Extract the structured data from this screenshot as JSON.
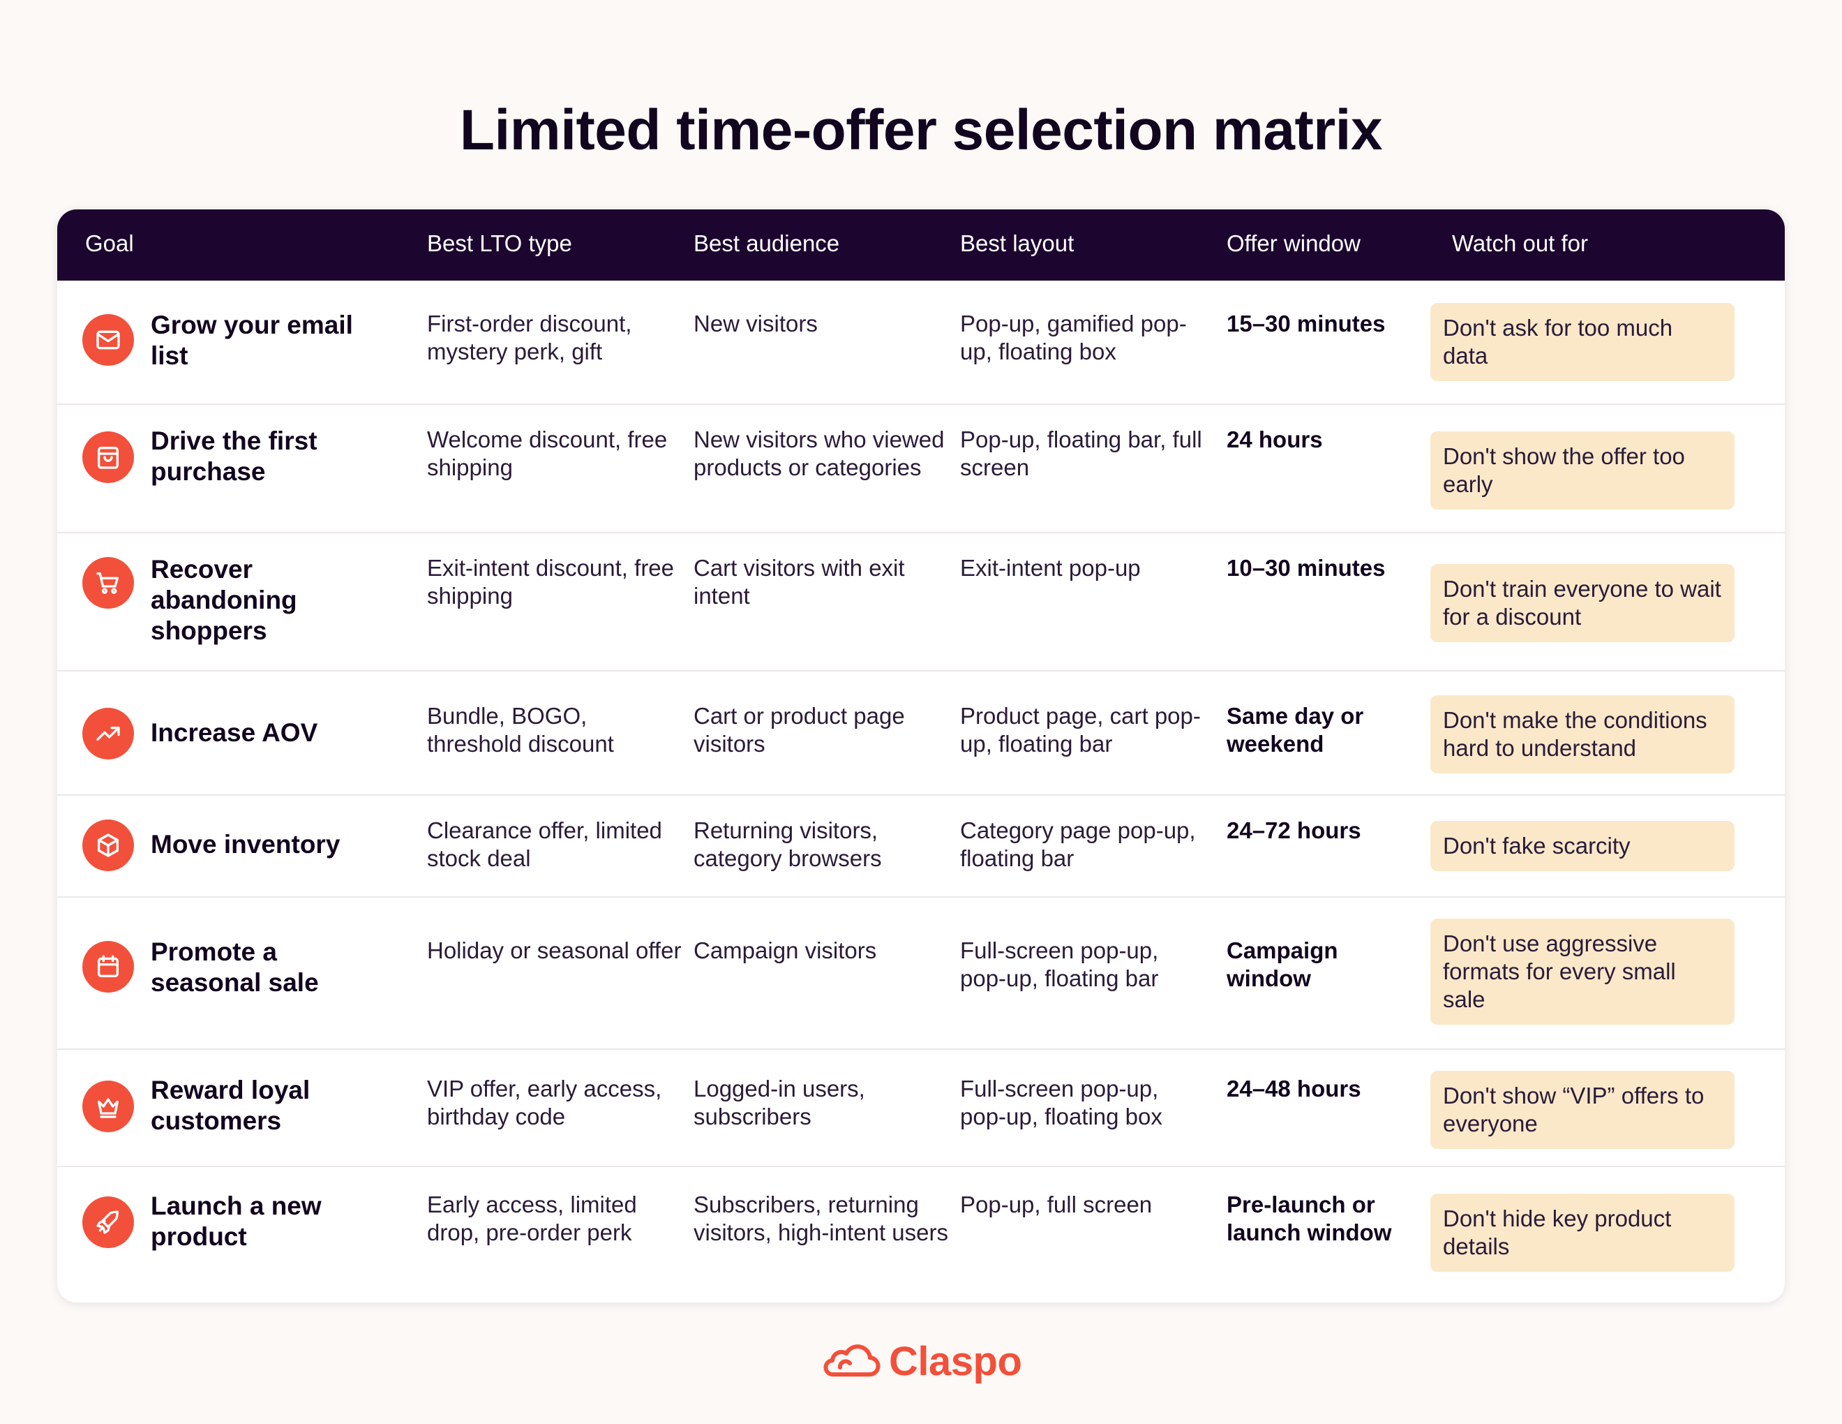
{
  "title": "Limited time-offer selection matrix",
  "colors": {
    "header_bg": "#1c062f",
    "accent": "#f2503a",
    "watch_bg": "#fbe8c9"
  },
  "columns": [
    "Goal",
    "Best LTO type",
    "Best audience",
    "Best layout",
    "Offer window",
    "Watch out for"
  ],
  "rows": [
    {
      "icon": "mail-icon",
      "goal": "Grow your email list",
      "lto_type": "First-order discount, mystery perk, gift",
      "audience": "New visitors",
      "layout": "Pop-up, gamified pop-up, floating box",
      "window": "15–30 minutes",
      "watch": "Don't ask for too much data"
    },
    {
      "icon": "shopping-bag-icon",
      "goal": "Drive the first purchase",
      "lto_type": "Welcome discount, free shipping",
      "audience": "New visitors who viewed products or categories",
      "layout": "Pop-up, floating bar, full screen",
      "window": "24 hours",
      "watch": "Don't show the offer too early"
    },
    {
      "icon": "cart-icon",
      "goal": "Recover abandoning shoppers",
      "lto_type": "Exit-intent discount, free shipping",
      "audience": "Cart visitors with exit intent",
      "layout": "Exit-intent pop-up",
      "window": "10–30 minutes",
      "watch": "Don't train everyone to wait for a discount"
    },
    {
      "icon": "trending-up-icon",
      "goal": "Increase AOV",
      "lto_type": "Bundle, BOGO, threshold discount",
      "audience": "Cart or product page visitors",
      "layout": "Product page, cart pop-up, floating bar",
      "window": "Same day or weekend",
      "watch": "Don't make the conditions hard to understand"
    },
    {
      "icon": "box-icon",
      "goal": "Move inventory",
      "lto_type": "Clearance offer, limited stock deal",
      "audience": "Returning visitors, category browsers",
      "layout": "Category page pop-up, floating bar",
      "window": "24–72 hours",
      "watch": "Don't fake scarcity"
    },
    {
      "icon": "calendar-icon",
      "goal": "Promote a seasonal sale",
      "lto_type": "Holiday or seasonal offer",
      "audience": "Campaign visitors",
      "layout": "Full-screen pop-up, pop-up, floating bar",
      "window": "Campaign window",
      "watch": "Don't use aggressive formats for every small sale"
    },
    {
      "icon": "crown-icon",
      "goal": "Reward loyal customers",
      "lto_type": "VIP offer, early access, birthday code",
      "audience": "Logged-in users, subscribers",
      "layout": "Full-screen pop-up, pop-up, floating box",
      "window": "24–48 hours",
      "watch": "Don't show “VIP” offers to everyone"
    },
    {
      "icon": "rocket-icon",
      "goal": "Launch a new product",
      "lto_type": "Early access, limited drop, pre-order perk",
      "audience": "Subscribers, returning visitors, high-intent users",
      "layout": "Pop-up, full screen",
      "window": "Pre-launch or launch window",
      "watch": "Don't hide key product details"
    }
  ],
  "footer": {
    "logo_icon": "cloud-icon",
    "brand": "Claspo"
  }
}
